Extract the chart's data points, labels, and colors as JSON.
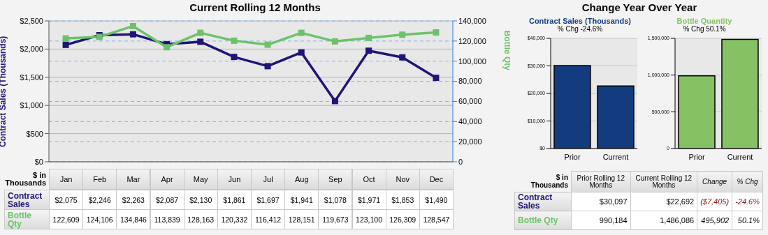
{
  "chart_data": [
    {
      "type": "line",
      "title": "Current Rolling 12 Months",
      "ylabel": "Contract Sales (Thousands)",
      "y2label": "Bottle Qty",
      "categories": [
        "Jan",
        "Feb",
        "Mar",
        "Apr",
        "May",
        "Jun",
        "Jul",
        "Aug",
        "Sep",
        "Oct",
        "Nov",
        "Dec"
      ],
      "series": [
        {
          "name": "Contract Sales",
          "color": "#1f1577",
          "values": [
            2075,
            2246,
            2263,
            2087,
            2130,
            1861,
            1697,
            1941,
            1078,
            1971,
            1853,
            1490
          ],
          "value_labels": [
            "$2,075",
            "$2,246",
            "$2,263",
            "$2,087",
            "$2,130",
            "$1,861",
            "$1,697",
            "$1,941",
            "$1,078",
            "$1,971",
            "$1,853",
            "$1,490"
          ]
        },
        {
          "name": "Bottle Qty",
          "color": "#6cc26a",
          "axis": "y2",
          "values": [
            122609,
            124106,
            134846,
            113839,
            128163,
            120332,
            116412,
            128151,
            119673,
            123100,
            126309,
            128547
          ],
          "value_labels": [
            "122,609",
            "124,106",
            "134,846",
            "113,839",
            "128,163",
            "120,332",
            "116,412",
            "128,151",
            "119,673",
            "123,100",
            "126,309",
            "128,547"
          ]
        }
      ],
      "ylim": [
        0,
        2500
      ],
      "yticks": [
        {
          "value": 0,
          "label": "$0"
        },
        {
          "value": 500,
          "label": "$500"
        },
        {
          "value": 1000,
          "label": "$1,000"
        },
        {
          "value": 1500,
          "label": "$1,500"
        },
        {
          "value": 2000,
          "label": "$2,000"
        },
        {
          "value": 2500,
          "label": "$2,500"
        }
      ],
      "y2lim": [
        0,
        140000
      ],
      "y2ticks": [
        0,
        {
          "value": 20000,
          "label": "20,000"
        },
        {
          "value": 40000,
          "label": "40,000"
        },
        {
          "value": 60000,
          "label": "60,000"
        },
        {
          "value": 80000,
          "label": "80,000"
        },
        {
          "value": 100000,
          "label": "100,000"
        },
        {
          "value": 120000,
          "label": "120,000"
        },
        {
          "value": 140000,
          "label": "140,000"
        }
      ],
      "grid": "y",
      "marker": "square",
      "tick_labels": "y",
      "annotations": [
        "$ in Thousands"
      ]
    },
    {
      "type": "other",
      "title": "Change Year Over Year"
    },
    {
      "type": "bar",
      "title": "Contract Sales (Thousands)",
      "subtitle": "% Chg -24.6%",
      "categories": [
        "Prior",
        "Current"
      ],
      "values": [
        30097,
        22692
      ],
      "color": "#123c7e",
      "ylim": [
        0,
        40000
      ],
      "yticks": [
        {
          "value": 0,
          "label": "$0"
        },
        {
          "value": 10000,
          "label": "$10,000"
        },
        {
          "value": 20000,
          "label": "$20,000"
        },
        {
          "value": 30000,
          "label": "$30,000"
        },
        {
          "value": 40000,
          "label": "$40,000"
        }
      ],
      "grid": "y"
    },
    {
      "type": "bar",
      "title": "Bottle Quantity",
      "subtitle": "% Chg 50.1%",
      "categories": [
        "Prior",
        "Current"
      ],
      "values": [
        990184,
        1486086
      ],
      "color": "#86c263",
      "ylim": [
        0,
        1500000
      ],
      "yticks": [
        0,
        {
          "value": 500000,
          "label": "500,000"
        },
        {
          "value": 1000000,
          "label": "1,000,000"
        },
        {
          "value": 1500000,
          "label": "1,500,000"
        }
      ],
      "grid": "y"
    },
    {
      "type": "other",
      "annotations": [
        "$ in Thousands",
        "Prior Rolling 12 Months",
        "Current Rolling 12 Months",
        "Change",
        "% Chg",
        "Contract Sales",
        "$30,097",
        "$22,692",
        "($7,405)",
        "-24.6%",
        "Bottle Qty",
        "990,184",
        "1,486,086",
        "495,902",
        "50.1%"
      ]
    }
  ]
}
